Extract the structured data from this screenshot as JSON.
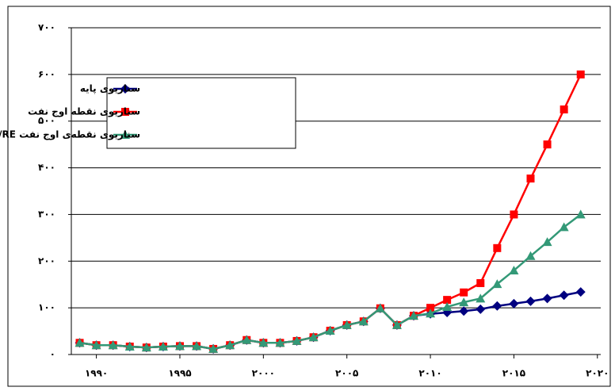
{
  "chart_data": {
    "type": "line",
    "x": [
      1989,
      1990,
      1991,
      1992,
      1993,
      1994,
      1995,
      1996,
      1997,
      1998,
      1999,
      2000,
      2001,
      2002,
      2003,
      2004,
      2005,
      2006,
      2007,
      2008,
      2009,
      2010,
      2011,
      2012,
      2013,
      2014,
      2015,
      2016,
      2017,
      2018,
      2019
    ],
    "xlim": [
      1988.5,
      2020.2
    ],
    "xticks": [
      {
        "value": 1990,
        "label": "۱۹۹۰"
      },
      {
        "value": 1995,
        "label": "۱۹۹۵"
      },
      {
        "value": 2000,
        "label": "۲۰۰۰"
      },
      {
        "value": 2005,
        "label": "۲۰۰۵"
      },
      {
        "value": 2010,
        "label": "۲۰۱۰"
      },
      {
        "value": 2015,
        "label": "۲۰۱۵"
      },
      {
        "value": 2020,
        "label": "۲۰۲۰"
      }
    ],
    "ylim": [
      0,
      700
    ],
    "yticks": [
      {
        "value": 0,
        "label": "۰"
      },
      {
        "value": 100,
        "label": "۱۰۰"
      },
      {
        "value": 200,
        "label": "۲۰۰"
      },
      {
        "value": 300,
        "label": "۳۰۰"
      },
      {
        "value": 400,
        "label": "۴۰۰"
      },
      {
        "value": 500,
        "label": "۵۰۰"
      },
      {
        "value": 600,
        "label": "۶۰۰"
      },
      {
        "value": 700,
        "label": "۷۰۰"
      }
    ],
    "grid": true,
    "legend": "upper left",
    "series": [
      {
        "name": "سناریوی پایه",
        "color": "#000080",
        "marker": "diamond",
        "values": [
          25,
          20,
          20,
          17,
          15,
          17,
          18,
          18,
          12,
          20,
          31,
          25,
          25,
          29,
          37,
          51,
          63,
          71,
          99,
          63,
          83,
          87,
          90,
          93,
          97,
          104,
          109,
          114,
          120,
          127,
          134
        ]
      },
      {
        "name": "سناریوی نقطه اوج نفت",
        "color": "#ff0000",
        "marker": "square",
        "values": [
          25,
          20,
          20,
          17,
          15,
          17,
          18,
          18,
          12,
          20,
          31,
          25,
          25,
          29,
          37,
          51,
          63,
          71,
          99,
          63,
          83,
          100,
          117,
          133,
          153,
          228,
          300,
          377,
          450,
          525,
          600
        ]
      },
      {
        "name": "سناریوی نقطه‌ی اوج نفت EFF/RE",
        "color": "#339977",
        "marker": "triangle",
        "values": [
          25,
          20,
          20,
          17,
          15,
          17,
          18,
          18,
          12,
          20,
          31,
          25,
          25,
          29,
          37,
          51,
          63,
          71,
          99,
          63,
          83,
          88,
          102,
          112,
          120,
          151,
          180,
          211,
          241,
          273,
          300
        ]
      }
    ]
  }
}
